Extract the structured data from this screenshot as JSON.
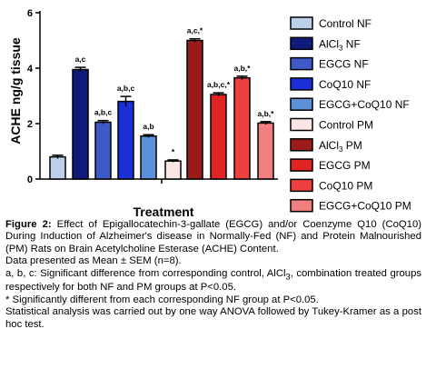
{
  "chart_data": {
    "type": "bar",
    "ylabel": "ACHE ng/g tissue",
    "xlabel": "Treatment",
    "ylim": [
      0,
      6
    ],
    "yticks": [
      0,
      2,
      4,
      6
    ],
    "legend_position": "right",
    "series": [
      {
        "name": "Control NF",
        "name_base": "Control NF",
        "name_sub": "",
        "name_tail": "",
        "group": "NF",
        "value": 0.8,
        "error": 0.06,
        "annotation": "",
        "color": "#bcd0ec"
      },
      {
        "name": "AlCl3 NF",
        "name_base": "AlCl",
        "name_sub": "3",
        "name_tail": " NF",
        "group": "NF",
        "value": 3.95,
        "error": 0.08,
        "annotation": "a,c",
        "color": "#0f1a7a"
      },
      {
        "name": "EGCG NF",
        "name_base": "EGCG NF",
        "name_sub": "",
        "name_tail": "",
        "group": "NF",
        "value": 2.05,
        "error": 0.06,
        "annotation": "a,b,c",
        "color": "#3d5ac8"
      },
      {
        "name": "CoQ10 NF",
        "name_base": "CoQ10 NF",
        "name_sub": "",
        "name_tail": "",
        "group": "NF",
        "value": 2.8,
        "error": 0.18,
        "annotation": "a,b,c",
        "color": "#1a2fd6"
      },
      {
        "name": "EGCG+CoQ10 NF",
        "name_base": "EGCG+CoQ10 NF",
        "name_sub": "",
        "name_tail": "",
        "group": "NF",
        "value": 1.55,
        "error": 0.05,
        "annotation": "a,b",
        "color": "#5b8fd8"
      },
      {
        "name": "Control PM",
        "name_base": "Control PM",
        "name_sub": "",
        "name_tail": "",
        "group": "PM",
        "value": 0.65,
        "error": 0.04,
        "annotation": "*",
        "color": "#fbe6e6"
      },
      {
        "name": "AlCl3 PM",
        "name_base": "AlCl",
        "name_sub": "3",
        "name_tail": " PM",
        "group": "PM",
        "value": 5.0,
        "error": 0.06,
        "annotation": "a,c,*",
        "color": "#9b1a1a"
      },
      {
        "name": "EGCG PM",
        "name_base": "EGCG PM",
        "name_sub": "",
        "name_tail": "",
        "group": "PM",
        "value": 3.05,
        "error": 0.06,
        "annotation": "a,b,c,*",
        "color": "#e02424"
      },
      {
        "name": "CoQ10 PM",
        "name_base": "CoQ10 PM",
        "name_sub": "",
        "name_tail": "",
        "group": "PM",
        "value": 3.65,
        "error": 0.06,
        "annotation": "a,b,*",
        "color": "#ee4040"
      },
      {
        "name": "EGCG+CoQ10 PM",
        "name_base": "EGCG+CoQ10 PM",
        "name_sub": "",
        "name_tail": "",
        "group": "PM",
        "value": 2.02,
        "error": 0.05,
        "annotation": "a,b,*",
        "color": "#f08080"
      }
    ]
  },
  "caption": {
    "label": "Figure 2:",
    "text": " Effect of Epigallocatechin-3-gallate (EGCG) and/or Coenzyme Q10 (CoQ10) During Induction of Alzheimer's disease in Normally-Fed (NF) and Protein Malnourished (PM) Rats on Brain Acetylcholine Esterase (ACHE) Content.",
    "line_data": "Data presented as Mean ± SEM (n=8).",
    "line_abc_a": "a, b, c: Significant difference from corresponding control, AlCl",
    "line_abc_sub": "3",
    "line_abc_b": ", combination treated groups respectively for both NF and PM groups at P<0.05.",
    "line_star": "* Significantly different from each corresponding NF group at P<0.05.",
    "line_stats": "Statistical analysis was carried out by one way ANOVA followed by Tukey-Kramer as a post hoc test."
  }
}
